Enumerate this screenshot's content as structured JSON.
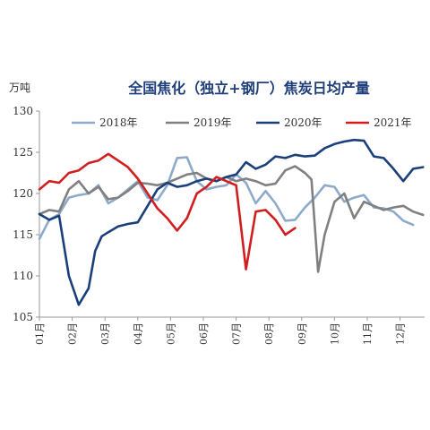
{
  "chart_data": {
    "type": "line",
    "title": "全国焦化（独立+钢厂）焦炭日均产量",
    "unit_label": "万吨",
    "ylim": [
      105,
      130
    ],
    "yticks": [
      105,
      110,
      115,
      120,
      125,
      130
    ],
    "x_tick_labels": [
      "01月",
      "02月",
      "03月",
      "04月",
      "05月",
      "06月",
      "07月",
      "08月",
      "09月",
      "10月",
      "11月",
      "12月"
    ],
    "grid": false,
    "legend_position": "top",
    "series": [
      {
        "name": "2018年",
        "color": "#8eaacb",
        "x": [
          0,
          0.3,
          0.6,
          0.9,
          1.2,
          1.5,
          1.8,
          2.1,
          2.4,
          2.7,
          3.0,
          3.3,
          3.6,
          3.9,
          4.2,
          4.5,
          4.8,
          5.1,
          5.4,
          5.7,
          6.0,
          6.3,
          6.6,
          6.9,
          7.2,
          7.5,
          7.8,
          8.1,
          8.4,
          8.7,
          9.0,
          9.3,
          9.6,
          9.9,
          10.2,
          10.5,
          10.8,
          11.1,
          11.4
        ],
        "values": [
          114.5,
          116.8,
          117.5,
          119.5,
          119.8,
          120.0,
          121.0,
          118.8,
          119.5,
          120.5,
          121.5,
          119.5,
          119.2,
          121.0,
          124.3,
          124.4,
          121.5,
          120.5,
          120.8,
          121.0,
          122.3,
          121.3,
          118.8,
          120.3,
          118.8,
          116.7,
          116.8,
          118.3,
          119.5,
          121.0,
          120.8,
          119.0,
          119.5,
          119.8,
          118.3,
          118.2,
          117.8,
          116.7,
          116.2
        ]
      },
      {
        "name": "2019年",
        "color": "#808080",
        "x": [
          0,
          0.3,
          0.6,
          0.9,
          1.2,
          1.5,
          1.8,
          2.1,
          2.4,
          2.7,
          3.0,
          3.3,
          3.6,
          3.9,
          4.2,
          4.5,
          4.8,
          5.1,
          5.4,
          5.7,
          6.0,
          6.3,
          6.6,
          6.9,
          7.2,
          7.5,
          7.8,
          8.1,
          8.3,
          8.5,
          8.7,
          9.0,
          9.3,
          9.6,
          9.9,
          10.2,
          10.5,
          10.8,
          11.1,
          11.4,
          11.7
        ],
        "values": [
          117.5,
          118.0,
          117.8,
          120.5,
          121.5,
          120.0,
          120.8,
          119.3,
          119.5,
          120.3,
          121.3,
          121.2,
          121.0,
          121.3,
          121.8,
          122.3,
          122.5,
          121.8,
          121.5,
          122.0,
          121.5,
          121.8,
          121.5,
          121.0,
          121.2,
          122.8,
          123.3,
          122.5,
          121.7,
          110.5,
          115.0,
          119.0,
          120.0,
          117.0,
          119.0,
          118.5,
          118.0,
          118.3,
          118.5,
          117.8,
          117.4
        ]
      },
      {
        "name": "2020年",
        "color": "#1b3f7a",
        "x": [
          0,
          0.3,
          0.6,
          0.9,
          1.2,
          1.5,
          1.7,
          1.9,
          2.1,
          2.4,
          2.7,
          3.0,
          3.3,
          3.6,
          3.9,
          4.2,
          4.5,
          4.8,
          5.1,
          5.4,
          5.7,
          6.0,
          6.3,
          6.6,
          6.9,
          7.2,
          7.5,
          7.8,
          8.1,
          8.4,
          8.7,
          9.0,
          9.3,
          9.6,
          9.9,
          10.2,
          10.5,
          10.8,
          11.1,
          11.4,
          11.7
        ],
        "values": [
          117.5,
          116.8,
          117.3,
          110.0,
          106.5,
          108.5,
          113.0,
          114.8,
          115.3,
          116.0,
          116.3,
          116.5,
          118.5,
          120.5,
          121.3,
          120.8,
          121.0,
          121.5,
          121.8,
          121.5,
          122.0,
          122.3,
          123.8,
          123.0,
          123.5,
          124.5,
          124.3,
          124.7,
          124.5,
          124.6,
          125.5,
          126.0,
          126.3,
          126.5,
          126.4,
          124.5,
          124.3,
          123.0,
          121.5,
          123.0,
          123.2
        ]
      },
      {
        "name": "2021年",
        "color": "#d11f1f",
        "x": [
          0,
          0.3,
          0.6,
          0.9,
          1.2,
          1.5,
          1.8,
          2.1,
          2.4,
          2.7,
          3.0,
          3.3,
          3.6,
          3.9,
          4.2,
          4.5,
          4.8,
          5.1,
          5.4,
          5.7,
          6.0,
          6.3,
          6.6,
          6.9,
          7.2,
          7.5,
          7.8
        ],
        "values": [
          120.5,
          121.5,
          121.3,
          122.5,
          122.8,
          123.7,
          124.0,
          124.8,
          124.0,
          123.2,
          121.8,
          120.0,
          118.2,
          117.0,
          115.5,
          117.0,
          120.0,
          120.8,
          122.0,
          121.5,
          121.0,
          110.8,
          117.8,
          118.0,
          116.8,
          115.0,
          115.8
        ]
      }
    ]
  }
}
